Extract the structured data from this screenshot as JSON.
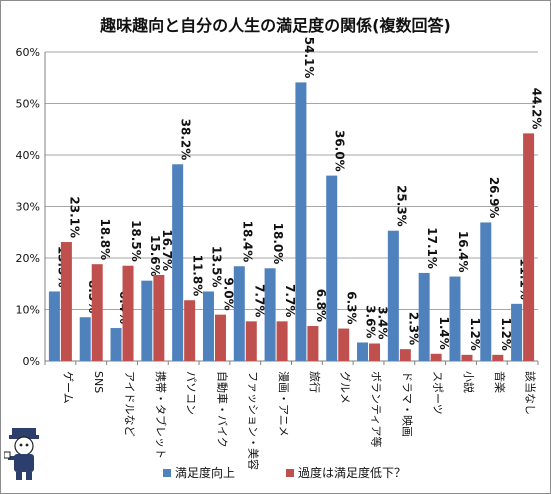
{
  "chart_data": {
    "type": "bar",
    "title": "趣味趣向と自分の人生の満足度の関係(複数回答)",
    "categories": [
      "ゲーム",
      "SNS",
      "アイドルなど",
      "携帯・タブレット",
      "パソコン",
      "自動車・バイク",
      "ファッション・美容",
      "漫画・アニメ",
      "旅行",
      "グルメ",
      "ボランティア等",
      "ドラマ・映画",
      "スポーツ",
      "小説",
      "音楽",
      "該当なし"
    ],
    "series": [
      {
        "name": "満足度向上",
        "color": "#4f81bd",
        "values": [
          13.5,
          8.5,
          6.4,
          15.6,
          38.2,
          13.5,
          18.4,
          18.0,
          54.1,
          36.0,
          3.6,
          25.3,
          17.1,
          16.4,
          26.9,
          11.1
        ]
      },
      {
        "name": "過度は満足度低下？",
        "color": "#c0504d",
        "values": [
          23.1,
          18.8,
          18.5,
          16.7,
          11.8,
          9.0,
          7.7,
          7.7,
          6.8,
          6.3,
          3.4,
          2.3,
          1.4,
          1.2,
          1.2,
          44.2
        ]
      }
    ],
    "y_ticks": [
      "0%",
      "10%",
      "20%",
      "30%",
      "40%",
      "50%",
      "60%"
    ],
    "ylim": [
      0,
      60
    ],
    "grid": true,
    "legend_position": "bottom"
  }
}
